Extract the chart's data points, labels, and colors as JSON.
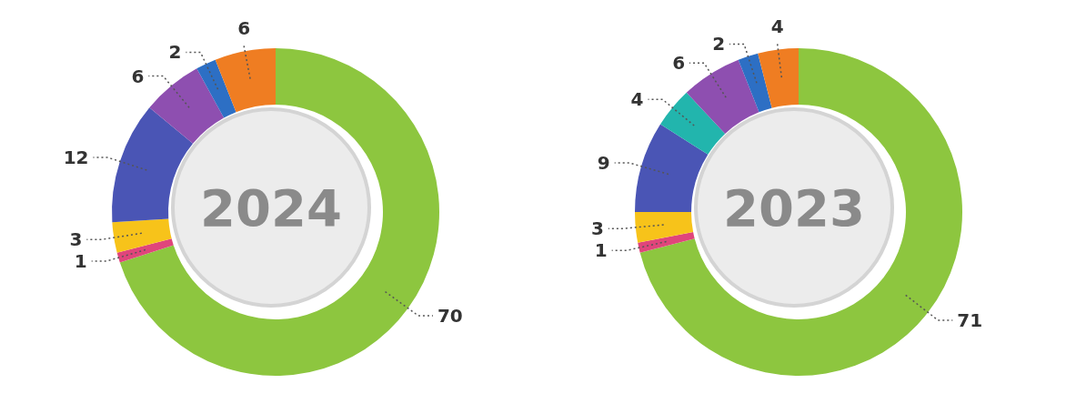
{
  "chart_data": [
    {
      "type": "donut",
      "title": "2024",
      "categories": [
        null,
        null,
        null,
        null,
        null,
        null,
        null
      ],
      "values": [
        70,
        1,
        3,
        12,
        6,
        2,
        6
      ],
      "colors": [
        "#8dc63f",
        "#e0457b",
        "#f7c31a",
        "#4a55b5",
        "#8e4fb0",
        "#2d6fc4",
        "#ef7d22"
      ],
      "data_labels": true
    },
    {
      "type": "donut",
      "title": "2023",
      "categories": [
        null,
        null,
        null,
        null,
        null,
        null,
        null,
        null
      ],
      "values": [
        71,
        1,
        3,
        9,
        4,
        6,
        2,
        4
      ],
      "colors": [
        "#8dc63f",
        "#e0457b",
        "#f7c31a",
        "#4a55b5",
        "#22b5ad",
        "#8e4fb0",
        "#2d6fc4",
        "#ef7d22"
      ],
      "data_labels": true
    }
  ]
}
